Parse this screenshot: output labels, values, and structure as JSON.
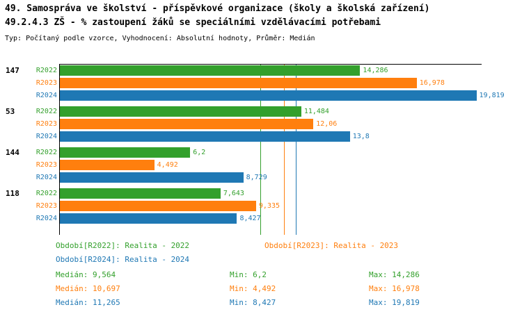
{
  "title_line1": "49. Samospráva ve školství - příspěvkové organizace (školy a školská zařízení)",
  "title_line2": "49.2.4.3 ZŠ - % zastoupení žáků se speciálními vzdělávacími potřebami",
  "subtitle": "Typ: Počítaný podle vzorce, Vyhodnocení: Absolutní hodnoty, Průměr: Medián",
  "colors": {
    "r2022": "#33a02c",
    "r2023": "#ff7f0e",
    "r2024": "#1f78b4",
    "axis": "#000000"
  },
  "chart_data": {
    "type": "bar",
    "orientation": "horizontal",
    "xlim": [
      0,
      20
    ],
    "grid": false,
    "series_labels": [
      "R2022",
      "R2023",
      "R2024"
    ],
    "groups": [
      {
        "label": "147",
        "values": [
          14.286,
          16.978,
          19.819
        ],
        "display": [
          "14,286",
          "16,978",
          "19,819"
        ]
      },
      {
        "label": "53",
        "values": [
          11.484,
          12.06,
          13.8
        ],
        "display": [
          "11,484",
          "12,06",
          "13,8"
        ]
      },
      {
        "label": "144",
        "values": [
          6.2,
          4.492,
          8.729
        ],
        "display": [
          "6,2",
          "4,492",
          "8,729"
        ]
      },
      {
        "label": "118",
        "values": [
          7.643,
          9.335,
          8.427
        ],
        "display": [
          "7,643",
          "9,335",
          "8,427"
        ]
      }
    ],
    "medians": [
      9.564,
      10.697,
      11.265
    ]
  },
  "legend": [
    {
      "label": "Období[R2022]: Realita - 2022",
      "color_key": "r2022"
    },
    {
      "label": "Období[R2023]: Realita - 2023",
      "color_key": "r2023"
    },
    {
      "label": "Období[R2024]: Realita - 2024",
      "color_key": "r2024"
    }
  ],
  "stats": [
    {
      "median": "Medián: 9,564",
      "min": "Min: 6,2",
      "max": "Max: 14,286",
      "color_key": "r2022"
    },
    {
      "median": "Medián: 10,697",
      "min": "Min: 4,492",
      "max": "Max: 16,978",
      "color_key": "r2023"
    },
    {
      "median": "Medián: 11,265",
      "min": "Min: 8,427",
      "max": "Max: 19,819",
      "color_key": "r2024"
    }
  ]
}
